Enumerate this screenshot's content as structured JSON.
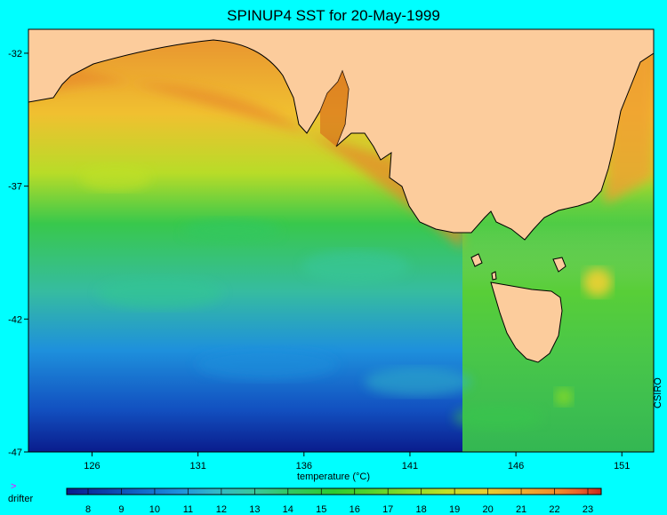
{
  "title": "SPINUP4 SST for 20-May-1999",
  "map": {
    "lat_ticks": [
      {
        "label": "-32",
        "value": -32
      },
      {
        "label": "-37",
        "value": -37
      },
      {
        "label": "-42",
        "value": -42
      },
      {
        "label": "-47",
        "value": -47
      }
    ],
    "lon_ticks": [
      {
        "label": "126",
        "value": 126
      },
      {
        "label": "131",
        "value": 131
      },
      {
        "label": "136",
        "value": 136
      },
      {
        "label": "141",
        "value": 141
      },
      {
        "label": "146",
        "value": 146
      },
      {
        "label": "151",
        "value": 151
      }
    ],
    "land_color": "#fccc9c"
  },
  "colorbar": {
    "label": "temperature (°C)",
    "ticks": [
      "8",
      "9",
      "10",
      "11",
      "12",
      "13",
      "14",
      "15",
      "16",
      "17",
      "18",
      "19",
      "20",
      "21",
      "22",
      "23"
    ],
    "colors": [
      "#0a1c8c",
      "#0c3ea8",
      "#1268c8",
      "#1e90dc",
      "#32b8c8",
      "#38c89c",
      "#30c860",
      "#2ccc30",
      "#54d42c",
      "#8cdc28",
      "#c0e028",
      "#e8d030",
      "#f0b030",
      "#f08a2c",
      "#e8602c",
      "#c8281c"
    ]
  },
  "credit": "CSIRO",
  "legend": {
    "marker": ">",
    "label": "drifter"
  }
}
